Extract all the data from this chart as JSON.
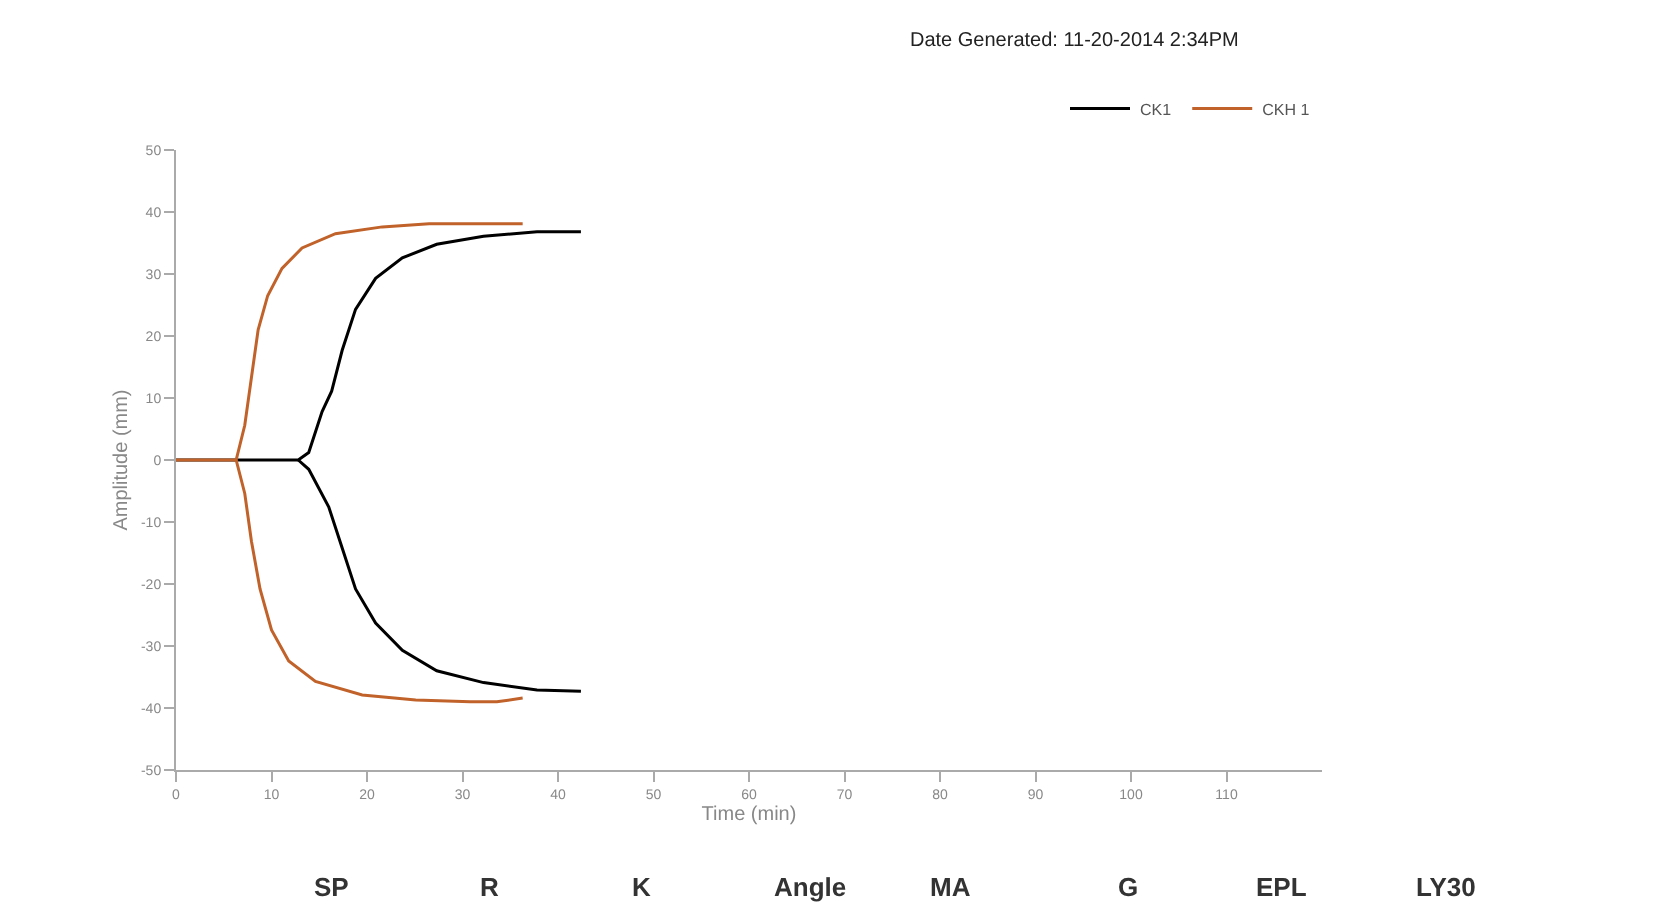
{
  "chart_data": {
    "type": "line",
    "xlabel": "Time (min)",
    "ylabel": "Amplitude (mm)",
    "xlim": [
      0,
      120
    ],
    "xticks": [
      0,
      10,
      20,
      30,
      40,
      50,
      60,
      70,
      80,
      90,
      100,
      110
    ],
    "ylim": [
      -50,
      50
    ],
    "yticks": [
      -50,
      -40,
      -30,
      -20,
      -10,
      0,
      10,
      20,
      30,
      40,
      50
    ],
    "legend": "top right",
    "marker": "none",
    "line_style": "solid",
    "annotations": [
      "Date Generated: 11-20-2014 2:34PM",
      "SP",
      "R",
      "K",
      "Angle",
      "MA",
      "G",
      "EPL",
      "LY30"
    ],
    "series": [
      {
        "name": "CK1",
        "color": "#000000",
        "x": [
          0,
          12.8,
          13.9,
          15.3,
          16.3,
          17.4,
          18.8,
          20.9,
          23.7,
          27.3,
          32.2,
          37.8,
          42.4
        ],
        "values": [
          0,
          0,
          1.2,
          7.8,
          11.1,
          17.7,
          24.3,
          29.3,
          32.6,
          34.8,
          36.1,
          36.8,
          36.8
        ]
      },
      {
        "color": "#000000",
        "x": [
          12.8,
          13.9,
          16.0,
          17.4,
          18.8,
          20.9,
          23.7,
          27.3,
          32.2,
          37.8,
          42.4
        ],
        "values": [
          0,
          -1.5,
          -7.6,
          -14.2,
          -20.8,
          -26.3,
          -30.7,
          -34,
          -35.9,
          -37.1,
          -37.3
        ]
      },
      {
        "name": "CKH 1",
        "color": "#c0622a",
        "x": [
          0,
          6.3,
          7.2,
          7.9,
          8.6,
          9.6,
          11.1,
          13.2,
          16.7,
          21.6,
          26.5,
          36.3
        ],
        "values": [
          0,
          0,
          5.6,
          13.3,
          21,
          26.5,
          30.9,
          34.2,
          36.5,
          37.6,
          38.1,
          38.1
        ]
      },
      {
        "color": "#c0622a",
        "x": [
          6.3,
          7.2,
          7.9,
          8.8,
          10,
          11.8,
          14.6,
          19.5,
          25.1,
          30.8,
          33.6,
          36.3
        ],
        "values": [
          0,
          -5.4,
          -13.1,
          -20.8,
          -27.4,
          -32.4,
          -35.7,
          -37.9,
          -38.7,
          -39,
          -39,
          -38.4
        ]
      }
    ]
  }
}
